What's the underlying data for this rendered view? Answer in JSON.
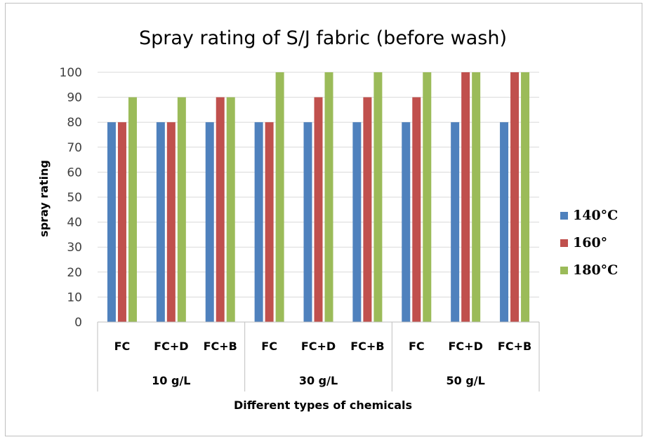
{
  "chart_data": {
    "type": "bar",
    "title": "Spray rating of S/J fabric (before wash)",
    "xlabel": "Different types of chemicals",
    "ylabel": "spray rating",
    "ylim": [
      0,
      100
    ],
    "yticks": [
      0,
      10,
      20,
      30,
      40,
      50,
      60,
      70,
      80,
      90,
      100
    ],
    "grid": true,
    "legend_position": "right",
    "groups": [
      {
        "label": "10 g/L",
        "categories": [
          "FC",
          "FC+D",
          "FC+B"
        ]
      },
      {
        "label": "30 g/L",
        "categories": [
          "FC",
          "FC+D",
          "FC+B"
        ]
      },
      {
        "label": "50 g/L",
        "categories": [
          "FC",
          "FC+D",
          "FC+B"
        ]
      }
    ],
    "categories": [
      "FC",
      "FC+D",
      "FC+B",
      "FC",
      "FC+D",
      "FC+B",
      "FC",
      "FC+D",
      "FC+B"
    ],
    "series": [
      {
        "name": "140°C",
        "color": "#4f81bd",
        "values": [
          80,
          80,
          80,
          80,
          80,
          80,
          80,
          80,
          80
        ]
      },
      {
        "name": "160°",
        "color": "#c0504d",
        "values": [
          80,
          80,
          90,
          80,
          90,
          90,
          90,
          100,
          100
        ]
      },
      {
        "name": "180°C",
        "color": "#9bbb59",
        "values": [
          90,
          90,
          90,
          100,
          100,
          100,
          100,
          100,
          100
        ]
      }
    ]
  }
}
